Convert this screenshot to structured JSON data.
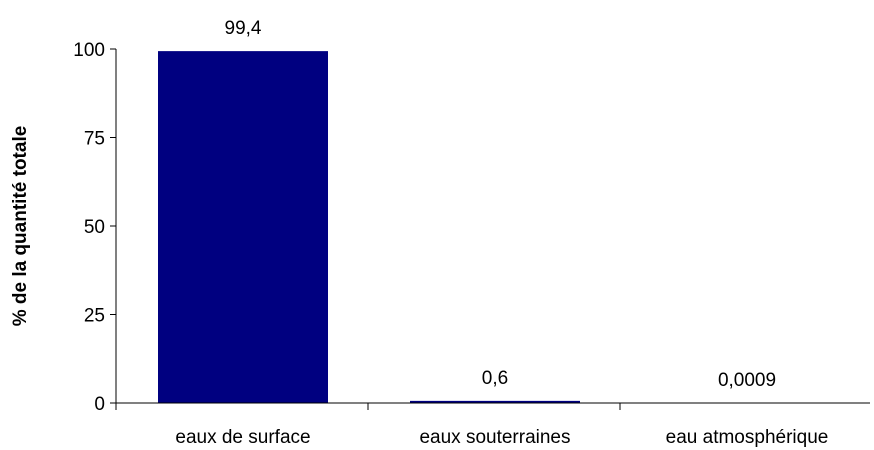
{
  "chart_data": {
    "type": "bar",
    "categories": [
      "eaux de surface",
      "eaux souterraines",
      "eau atmosphérique"
    ],
    "values": [
      99.4,
      0.6,
      0.0009
    ],
    "data_labels": [
      "99,4",
      "0,6",
      "0,0009"
    ],
    "title": "",
    "xlabel": "",
    "ylabel": "% de la quantité totale",
    "ylim": [
      0,
      100
    ],
    "yticks": [
      0,
      25,
      50,
      75,
      100
    ],
    "grid": false,
    "bar_color": "#000080"
  }
}
